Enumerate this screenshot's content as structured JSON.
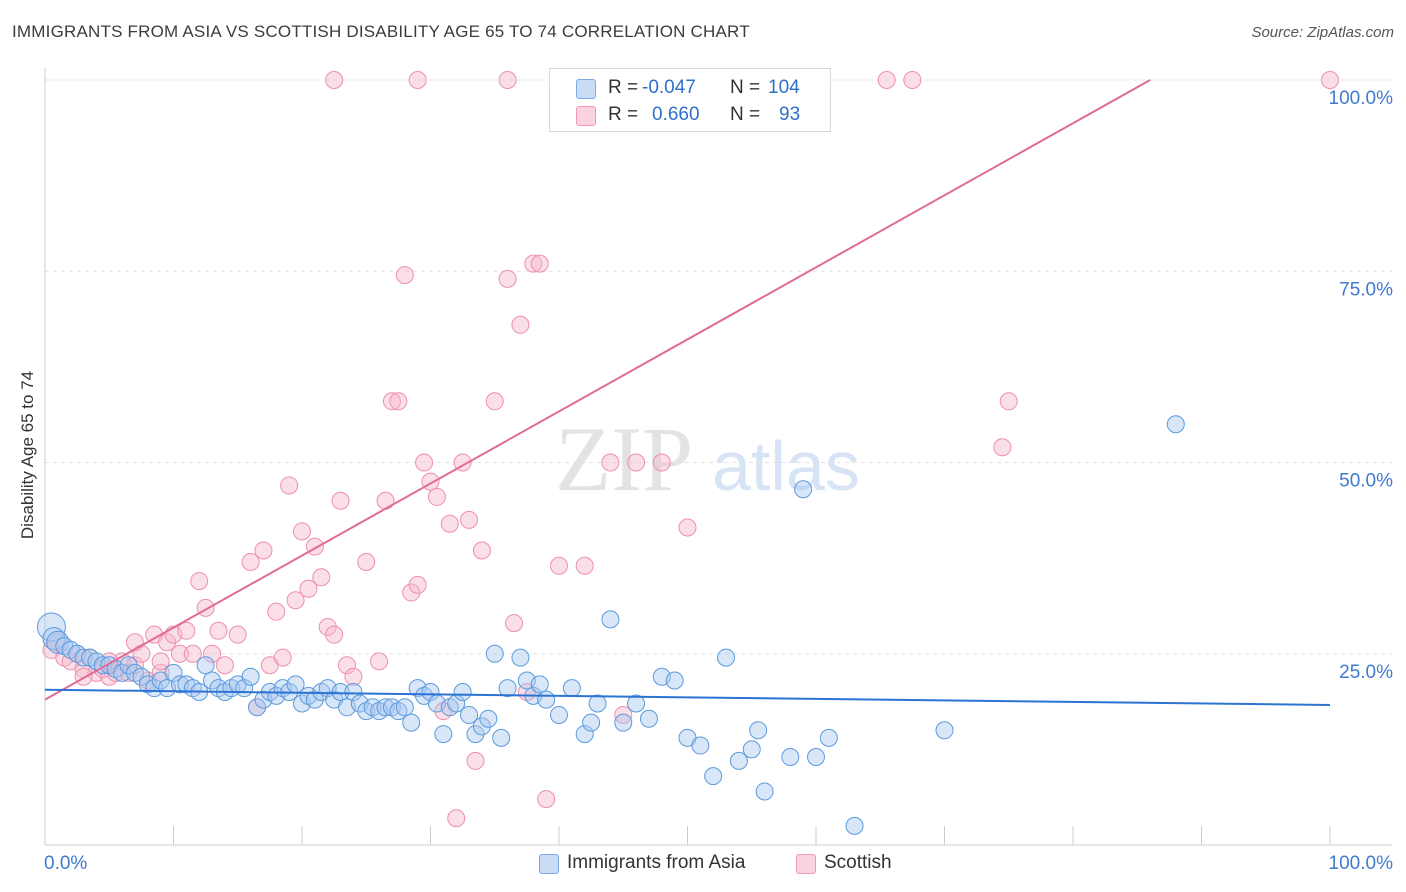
{
  "header": {
    "title": "IMMIGRANTS FROM ASIA VS SCOTTISH DISABILITY AGE 65 TO 74 CORRELATION CHART",
    "source": "Source: ZipAtlas.com"
  },
  "watermark": {
    "zip": "ZIP",
    "atlas": "atlas"
  },
  "legend": {
    "rows": [
      {
        "r_label": "R =",
        "r_value": "-0.047",
        "n_label": "N =",
        "n_value": "104",
        "color": "#a9c7ef"
      },
      {
        "r_label": "R =",
        "r_value": "0.660",
        "n_label": "N =",
        "n_value": "93",
        "color": "#f6b8cb"
      }
    ]
  },
  "bottom_legend": {
    "items": [
      {
        "label": "Immigrants from Asia",
        "color": "#a9c7ef"
      },
      {
        "label": "Scottish",
        "color": "#f6b8cb"
      }
    ]
  },
  "chart_data": {
    "type": "scatter",
    "title": "IMMIGRANTS FROM ASIA VS SCOTTISH DISABILITY AGE 65 TO 74 CORRELATION CHART",
    "xlabel": "",
    "ylabel": "Disability Age 65 to 74",
    "xlim": [
      0,
      100
    ],
    "ylim": [
      0,
      100
    ],
    "x_tick_labels": [
      "0.0%",
      "100.0%"
    ],
    "y_ticks": [
      25,
      50,
      75,
      100
    ],
    "y_tick_labels": [
      "25.0%",
      "50.0%",
      "75.0%",
      "100.0%"
    ],
    "grid": true,
    "legend_placement": "top-center",
    "series": [
      {
        "name": "Immigrants from Asia",
        "color": "#5b9bde",
        "fill": "#a9c7ef",
        "trend": {
          "x": [
            0,
            100
          ],
          "y": [
            20.3,
            18.3
          ],
          "color": "#2d74d2"
        },
        "points": [
          [
            0.5,
            28.5
          ],
          [
            0.7,
            27.0
          ],
          [
            1.0,
            26.5
          ],
          [
            1.5,
            26.0
          ],
          [
            2.0,
            25.5
          ],
          [
            2.5,
            25.0
          ],
          [
            3.0,
            24.5
          ],
          [
            3.5,
            24.5
          ],
          [
            4.0,
            24.0
          ],
          [
            4.5,
            23.5
          ],
          [
            5.0,
            23.5
          ],
          [
            5.5,
            23.0
          ],
          [
            6.0,
            22.5
          ],
          [
            6.5,
            23.5
          ],
          [
            7.0,
            22.5
          ],
          [
            7.5,
            22.0
          ],
          [
            8.0,
            21.0
          ],
          [
            8.5,
            20.5
          ],
          [
            9.0,
            21.5
          ],
          [
            9.5,
            20.5
          ],
          [
            10.0,
            22.5
          ],
          [
            10.5,
            21.0
          ],
          [
            11.0,
            21.0
          ],
          [
            11.5,
            20.5
          ],
          [
            12.0,
            20.0
          ],
          [
            12.5,
            23.5
          ],
          [
            13.0,
            21.5
          ],
          [
            13.5,
            20.5
          ],
          [
            14.0,
            20.0
          ],
          [
            14.5,
            20.5
          ],
          [
            15.0,
            21.0
          ],
          [
            15.5,
            20.5
          ],
          [
            16.0,
            22.0
          ],
          [
            16.5,
            18.0
          ],
          [
            17.0,
            19.0
          ],
          [
            17.5,
            20.0
          ],
          [
            18.0,
            19.5
          ],
          [
            18.5,
            20.5
          ],
          [
            19.0,
            20.0
          ],
          [
            19.5,
            21.0
          ],
          [
            20.0,
            18.5
          ],
          [
            20.5,
            19.5
          ],
          [
            21.0,
            19.0
          ],
          [
            21.5,
            20.0
          ],
          [
            22.0,
            20.5
          ],
          [
            22.5,
            19.0
          ],
          [
            23.0,
            20.0
          ],
          [
            23.5,
            18.0
          ],
          [
            24.0,
            20.0
          ],
          [
            24.5,
            18.5
          ],
          [
            25.0,
            17.5
          ],
          [
            25.5,
            18.0
          ],
          [
            26.0,
            17.5
          ],
          [
            26.5,
            18.0
          ],
          [
            27.0,
            18.0
          ],
          [
            27.5,
            17.5
          ],
          [
            28.0,
            18.0
          ],
          [
            28.5,
            16.0
          ],
          [
            29.0,
            20.5
          ],
          [
            29.5,
            19.5
          ],
          [
            30.0,
            20.0
          ],
          [
            30.5,
            18.5
          ],
          [
            31.0,
            14.5
          ],
          [
            31.5,
            18.0
          ],
          [
            32.0,
            18.5
          ],
          [
            32.5,
            20.0
          ],
          [
            33.0,
            17.0
          ],
          [
            33.5,
            14.5
          ],
          [
            34.0,
            15.5
          ],
          [
            34.5,
            16.5
          ],
          [
            35.0,
            25.0
          ],
          [
            35.5,
            14.0
          ],
          [
            36.0,
            20.5
          ],
          [
            37.0,
            24.5
          ],
          [
            37.5,
            21.5
          ],
          [
            38.0,
            19.5
          ],
          [
            38.5,
            21.0
          ],
          [
            39.0,
            19.0
          ],
          [
            40.0,
            17.0
          ],
          [
            41.0,
            20.5
          ],
          [
            42.0,
            14.5
          ],
          [
            42.5,
            16.0
          ],
          [
            43.0,
            18.5
          ],
          [
            44.0,
            29.5
          ],
          [
            45.0,
            16.0
          ],
          [
            46.0,
            18.5
          ],
          [
            47.0,
            16.5
          ],
          [
            48.0,
            22.0
          ],
          [
            49.0,
            21.5
          ],
          [
            50.0,
            14.0
          ],
          [
            51.0,
            13.0
          ],
          [
            52.0,
            9.0
          ],
          [
            53.0,
            24.5
          ],
          [
            54.0,
            11.0
          ],
          [
            55.0,
            12.5
          ],
          [
            55.5,
            15.0
          ],
          [
            56.0,
            7.0
          ],
          [
            58.0,
            11.5
          ],
          [
            59.0,
            46.5
          ],
          [
            60.0,
            11.5
          ],
          [
            61.0,
            14.0
          ],
          [
            63.0,
            2.5
          ],
          [
            70.0,
            15.0
          ],
          [
            88.0,
            55.0
          ]
        ]
      },
      {
        "name": "Scottish",
        "color": "#ee8fae",
        "fill": "#f6b8cb",
        "trend": {
          "x": [
            0,
            86
          ],
          "y": [
            19.0,
            100.0
          ],
          "color": "#e06b96"
        },
        "points": [
          [
            0.5,
            25.5
          ],
          [
            1.0,
            26.5
          ],
          [
            1.5,
            24.5
          ],
          [
            2.0,
            24.0
          ],
          [
            2.5,
            25.0
          ],
          [
            3.0,
            23.0
          ],
          [
            3.5,
            24.5
          ],
          [
            4.0,
            22.5
          ],
          [
            4.5,
            23.0
          ],
          [
            5.0,
            22.0
          ],
          [
            5.5,
            22.5
          ],
          [
            6.0,
            24.0
          ],
          [
            6.5,
            22.5
          ],
          [
            7.0,
            23.5
          ],
          [
            7.5,
            25.0
          ],
          [
            8.0,
            21.5
          ],
          [
            8.5,
            27.5
          ],
          [
            9.0,
            22.5
          ],
          [
            9.5,
            26.5
          ],
          [
            10.0,
            27.5
          ],
          [
            10.5,
            25.0
          ],
          [
            11.0,
            28.0
          ],
          [
            11.5,
            25.0
          ],
          [
            12.0,
            34.5
          ],
          [
            12.5,
            31.0
          ],
          [
            13.0,
            25.0
          ],
          [
            13.5,
            28.0
          ],
          [
            14.0,
            23.5
          ],
          [
            15.0,
            27.5
          ],
          [
            16.0,
            37.0
          ],
          [
            16.5,
            18.0
          ],
          [
            17.0,
            38.5
          ],
          [
            17.5,
            23.5
          ],
          [
            18.0,
            30.5
          ],
          [
            18.5,
            24.5
          ],
          [
            19.0,
            47.0
          ],
          [
            19.5,
            32.0
          ],
          [
            20.0,
            41.0
          ],
          [
            20.5,
            33.5
          ],
          [
            21.0,
            39.0
          ],
          [
            21.5,
            35.0
          ],
          [
            22.0,
            28.5
          ],
          [
            22.5,
            27.5
          ],
          [
            23.0,
            45.0
          ],
          [
            23.5,
            23.5
          ],
          [
            24.0,
            22.0
          ],
          [
            25.0,
            37.0
          ],
          [
            26.0,
            24.0
          ],
          [
            26.5,
            45.0
          ],
          [
            27.0,
            58.0
          ],
          [
            27.5,
            58.0
          ],
          [
            28.0,
            74.5
          ],
          [
            28.5,
            33.0
          ],
          [
            29.0,
            34.0
          ],
          [
            29.5,
            50.0
          ],
          [
            30.0,
            47.5
          ],
          [
            30.5,
            45.5
          ],
          [
            31.0,
            17.5
          ],
          [
            31.5,
            42.0
          ],
          [
            32.0,
            3.5
          ],
          [
            32.5,
            50.0
          ],
          [
            33.0,
            42.5
          ],
          [
            33.5,
            11.0
          ],
          [
            34.0,
            38.5
          ],
          [
            35.0,
            58.0
          ],
          [
            36.0,
            74.0
          ],
          [
            36.5,
            29.0
          ],
          [
            37.0,
            68.0
          ],
          [
            37.5,
            20.0
          ],
          [
            38.0,
            76.0
          ],
          [
            38.5,
            76.0
          ],
          [
            39.0,
            6.0
          ],
          [
            40.0,
            36.5
          ],
          [
            42.0,
            36.5
          ],
          [
            44.0,
            50.0
          ],
          [
            45.0,
            17.0
          ],
          [
            46.0,
            50.0
          ],
          [
            48.0,
            50.0
          ],
          [
            50.0,
            41.5
          ],
          [
            22.5,
            100.0
          ],
          [
            29.0,
            100.0
          ],
          [
            36.0,
            100.0
          ],
          [
            44.0,
            100.0
          ],
          [
            58.0,
            100.0
          ],
          [
            65.5,
            100.0
          ],
          [
            67.5,
            100.0
          ],
          [
            74.5,
            52.0
          ],
          [
            75.0,
            58.0
          ],
          [
            100.0,
            100.0
          ],
          [
            3.0,
            22.0
          ],
          [
            5.0,
            24.0
          ],
          [
            7.0,
            26.5
          ],
          [
            9.0,
            24.0
          ]
        ]
      }
    ]
  }
}
